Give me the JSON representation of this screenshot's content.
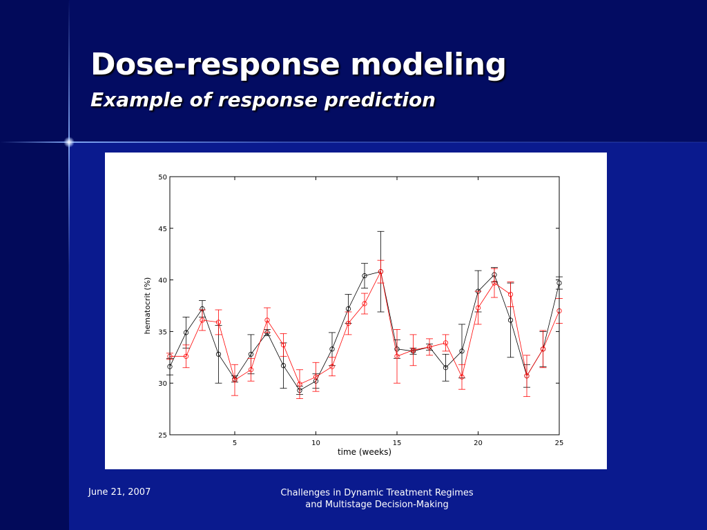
{
  "slide": {
    "title": "Dose-response modeling",
    "subtitle": "Example of response prediction"
  },
  "footer": {
    "date": "June 21, 2007",
    "title_line1": "Challenges in Dynamic Treatment Regimes",
    "title_line2": "and Multistage Decision-Making"
  },
  "colors": {
    "observed": "#000000",
    "predicted": "#ff0000",
    "background": "#07127a"
  },
  "chart_data": {
    "type": "line",
    "xlabel": "time (weeks)",
    "ylabel": "hematocrit (%)",
    "xlim": [
      1,
      25
    ],
    "ylim": [
      25,
      50
    ],
    "xticks": [
      5,
      10,
      15,
      20,
      25
    ],
    "yticks": [
      25,
      30,
      35,
      40,
      45,
      50
    ],
    "grid": false,
    "x": [
      1,
      2,
      3,
      4,
      5,
      6,
      7,
      8,
      9,
      10,
      11,
      12,
      13,
      14,
      15,
      16,
      17,
      18,
      19,
      20,
      21,
      22,
      23,
      24,
      25
    ],
    "series": [
      {
        "color": "#000000",
        "values": [
          31.6,
          34.9,
          37.2,
          32.8,
          30.4,
          32.8,
          34.9,
          31.7,
          29.3,
          30.2,
          33.3,
          37.2,
          40.4,
          40.8,
          33.3,
          33.1,
          33.5,
          31.5,
          33.1,
          38.9,
          40.5,
          36.1,
          30.7,
          33.3,
          39.7
        ],
        "err": [
          0.8,
          1.5,
          0.8,
          2.8,
          0.3,
          1.9,
          0.3,
          2.2,
          0.4,
          0.7,
          1.6,
          1.4,
          1.2,
          3.9,
          0.9,
          0.3,
          0.3,
          1.3,
          2.6,
          2.0,
          0.7,
          3.6,
          1.1,
          1.7,
          0.6
        ]
      },
      {
        "color": "#ff0000",
        "values": [
          32.6,
          32.6,
          36.1,
          35.9,
          30.3,
          31.3,
          36.1,
          33.7,
          29.9,
          30.6,
          31.6,
          35.8,
          37.7,
          40.8,
          32.6,
          33.2,
          33.5,
          33.9,
          30.6,
          37.3,
          39.7,
          38.6,
          30.7,
          33.3,
          37.0
        ],
        "err": [
          0.3,
          1.1,
          1.0,
          1.2,
          1.5,
          1.1,
          1.2,
          1.1,
          1.4,
          1.4,
          0.9,
          1.1,
          1.0,
          1.1,
          2.6,
          1.5,
          0.8,
          0.8,
          1.2,
          1.6,
          1.4,
          1.2,
          2.0,
          1.8,
          1.2
        ]
      }
    ]
  }
}
